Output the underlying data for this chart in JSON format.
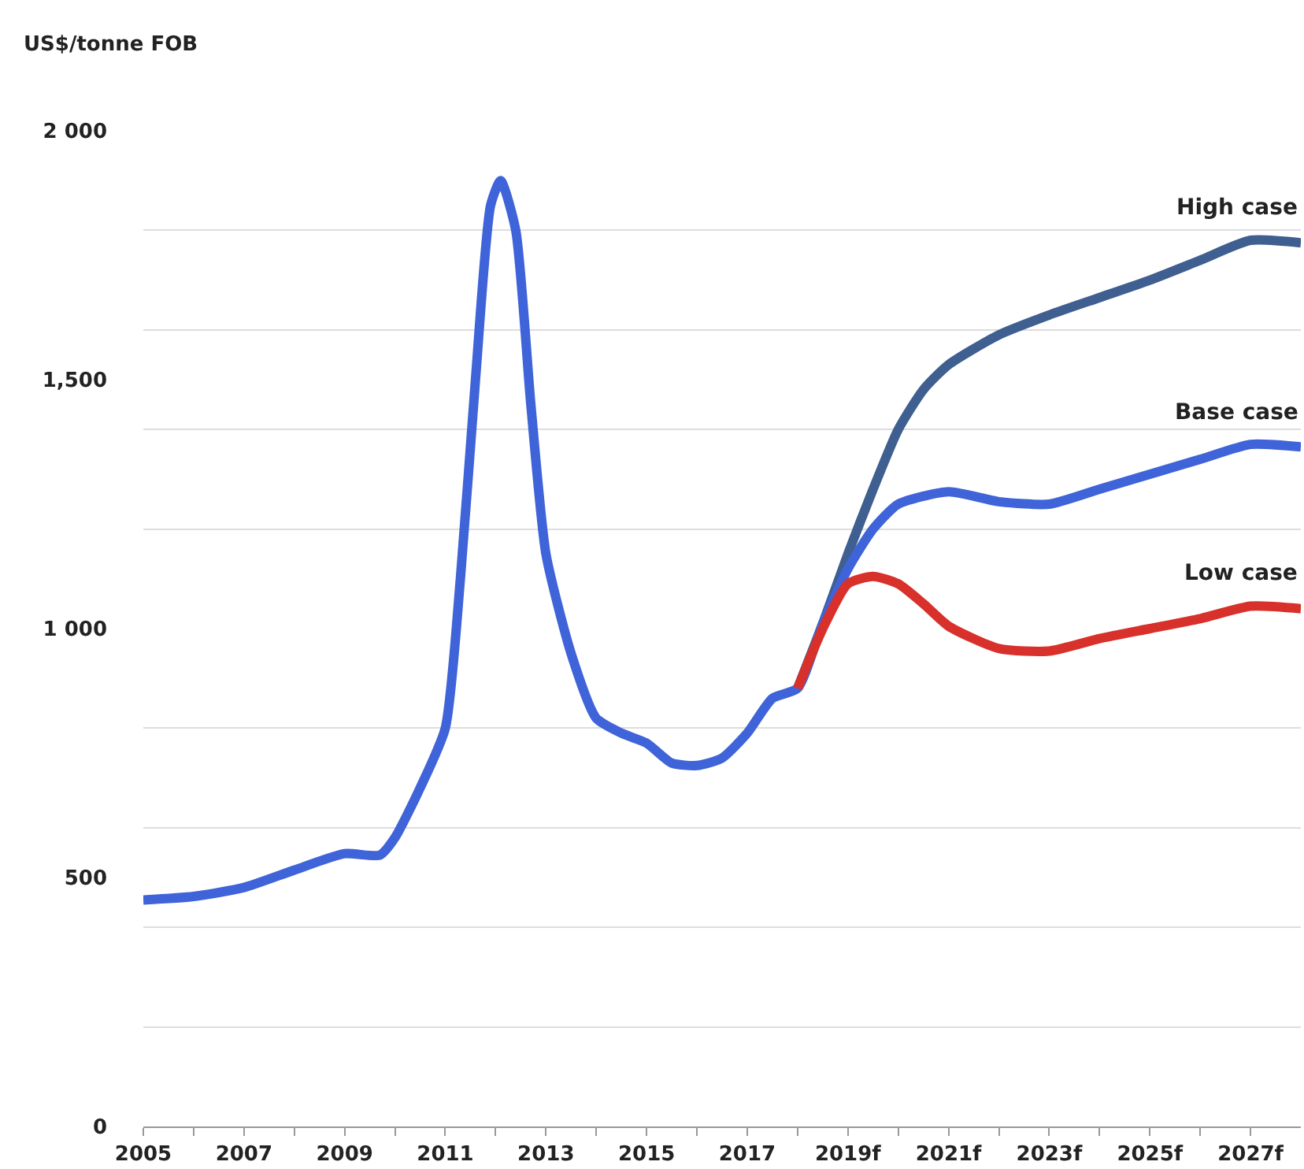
{
  "chart_data": {
    "type": "line",
    "ylabel": "US$/tonne FOB",
    "legend": false,
    "grid": "y",
    "marker": "none",
    "line_style": "solid",
    "xlim": [
      2005,
      2028
    ],
    "ylim": [
      0,
      2000
    ],
    "xticks": [
      2005,
      {
        "value": 2006,
        "label": null
      },
      2007,
      {
        "value": 2008,
        "label": null
      },
      2009,
      {
        "value": 2010,
        "label": null
      },
      2011,
      {
        "value": 2012,
        "label": null
      },
      2013,
      {
        "value": 2014,
        "label": null
      },
      2015,
      {
        "value": 2016,
        "label": null
      },
      2017,
      {
        "value": 2018,
        "label": null
      },
      {
        "value": 2019,
        "label": "2019f"
      },
      {
        "value": 2020,
        "label": null
      },
      {
        "value": 2021,
        "label": "2021f"
      },
      {
        "value": 2022,
        "label": null
      },
      {
        "value": 2023,
        "label": "2023f"
      },
      {
        "value": 2024,
        "label": null
      },
      {
        "value": 2025,
        "label": "2025f"
      },
      {
        "value": 2026,
        "label": null
      },
      {
        "value": 2027,
        "label": "2027f"
      }
    ],
    "yticks": [
      0,
      {
        "value": 200,
        "label": null
      },
      {
        "value": 400,
        "label": null
      },
      500,
      {
        "value": 600,
        "label": null
      },
      {
        "value": 800,
        "label": null
      },
      {
        "value": 1000,
        "label": "1 000"
      },
      {
        "value": 1200,
        "label": null
      },
      {
        "value": 1400,
        "label": null
      },
      {
        "value": 1500,
        "label": "1,500"
      },
      {
        "value": 1600,
        "label": null
      },
      {
        "value": 1800,
        "label": null
      },
      {
        "value": 2000,
        "label": "2 000"
      }
    ],
    "series": [
      {
        "name": "High case",
        "color": "#3e5f8f",
        "x": [
          2018,
          2018.5,
          2019,
          2019.5,
          2020,
          2020.5,
          2021,
          2022,
          2023,
          2024,
          2025,
          2026,
          2027,
          2028
        ],
        "values": [
          880,
          1010,
          1150,
          1280,
          1400,
          1480,
          1530,
          1590,
          1630,
          1665,
          1700,
          1740,
          1780,
          1775
        ]
      },
      {
        "name": "Base case",
        "color": "#3f63d8",
        "x": [
          2005,
          2006,
          2007,
          2008,
          2009,
          2009.7,
          2010,
          2010.5,
          2011,
          2011.3,
          2011.6,
          2011.9,
          2012.1,
          2012.4,
          2012.7,
          2013,
          2013.5,
          2014,
          2014.5,
          2015,
          2015.5,
          2016,
          2016.5,
          2017,
          2017.5,
          2018,
          2018.5,
          2019,
          2019.5,
          2020,
          2021,
          2022,
          2023,
          2024,
          2025,
          2026,
          2027,
          2028
        ],
        "values": [
          455,
          462,
          480,
          515,
          548,
          545,
          580,
          680,
          800,
          1100,
          1500,
          1850,
          1900,
          1800,
          1450,
          1150,
          950,
          820,
          790,
          770,
          730,
          725,
          740,
          790,
          860,
          880,
          1010,
          1120,
          1200,
          1250,
          1275,
          1255,
          1250,
          1280,
          1310,
          1340,
          1370,
          1365
        ]
      },
      {
        "name": "Low case",
        "color": "#d8302a",
        "x": [
          2018,
          2018.5,
          2019,
          2019.5,
          2020,
          2020.5,
          2021,
          2022,
          2023,
          2024,
          2025,
          2026,
          2027,
          2028
        ],
        "values": [
          880,
          1000,
          1090,
          1105,
          1090,
          1050,
          1005,
          960,
          955,
          980,
          1000,
          1020,
          1045,
          1040
        ]
      }
    ]
  }
}
